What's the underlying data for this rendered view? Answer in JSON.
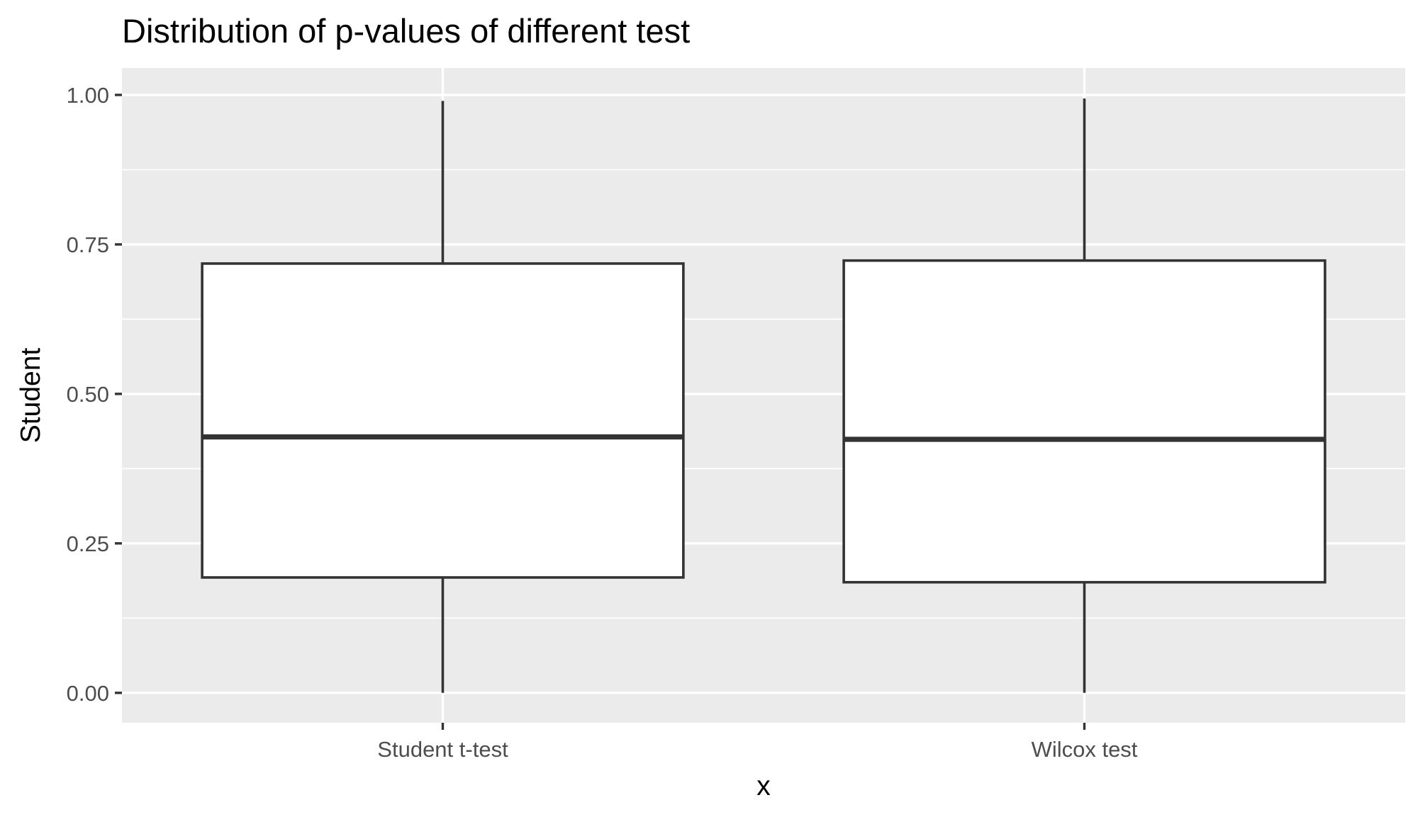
{
  "chart_data": {
    "type": "box",
    "title": "Distribution of p-values of different test",
    "xlabel": "x",
    "ylabel": "Student",
    "categories": [
      "Student t-test",
      "Wilcox test"
    ],
    "boxes": [
      {
        "category": "Student t-test",
        "whisker_low": 0.0,
        "q1": 0.193,
        "median": 0.428,
        "q3": 0.718,
        "whisker_high": 0.99
      },
      {
        "category": "Wilcox test",
        "whisker_low": 0.0,
        "q1": 0.185,
        "median": 0.424,
        "q3": 0.723,
        "whisker_high": 0.994
      }
    ],
    "yticks": [
      0.0,
      0.25,
      0.5,
      0.75,
      1.0
    ],
    "yticklabels": [
      "0.00",
      "0.25",
      "0.50",
      "0.75",
      "1.00"
    ],
    "ylim": [
      -0.05,
      1.045
    ],
    "grid": true,
    "legend": "none",
    "colors": {
      "panel_background": "#ebebeb",
      "grid": "#ffffff",
      "box_fill": "#ffffff",
      "box_line": "#333333",
      "tick_text": "#4d4d4d",
      "title_text": "#000000"
    }
  }
}
